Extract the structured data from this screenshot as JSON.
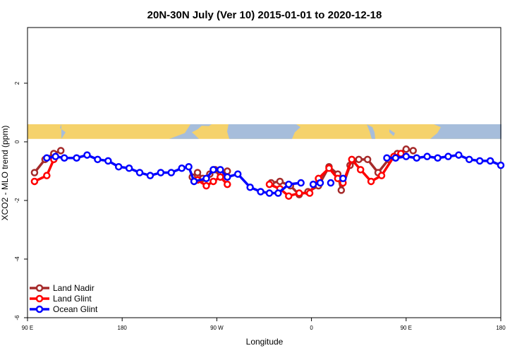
{
  "chart_data": {
    "type": "line",
    "title": "20N-30N July (Ver 10)   2015-01-01 to 2020-12-18",
    "xlabel": "Longitude",
    "ylabel": "XCO2 - MLO trend (ppm)",
    "xlim": [
      -90,
      180
    ],
    "ylim": [
      -6,
      3.9
    ],
    "x_ticks": [
      {
        "value": -90,
        "label": "90 E"
      },
      {
        "value": -36,
        "label": "180"
      },
      {
        "value": 18,
        "label": "90 W"
      },
      {
        "value": 72,
        "label": "0"
      },
      {
        "value": 126,
        "label": "90 E"
      },
      {
        "value": 180,
        "label": "180"
      }
    ],
    "y_ticks": [
      {
        "value": 2,
        "label": "2"
      },
      {
        "value": 0,
        "label": "0"
      },
      {
        "value": -2,
        "label": "-2"
      },
      {
        "value": -4,
        "label": "-4"
      },
      {
        "value": -6,
        "label": "-6"
      }
    ],
    "grid": false,
    "legend_position": "bottom-left",
    "map_strip": {
      "y_range": [
        0.1,
        0.6
      ],
      "land_color": "#f5d26b",
      "ocean_color": "#a6bddb"
    },
    "series": [
      {
        "name": "Land Nadir",
        "color": "#a52a2a",
        "segments": [
          {
            "x": [
              -86,
              -80,
              -75,
              -71
            ],
            "y": [
              -1.05,
              -0.6,
              -0.4,
              -0.3
            ]
          },
          {
            "x": [
              4,
              7,
              10,
              14,
              17,
              20,
              24
            ],
            "y": [
              -1.2,
              -1.05,
              -1.25,
              -1.1,
              -0.95,
              -1.2,
              -1.0
            ]
          },
          {
            "x": [
              49,
              54,
              60,
              65,
              70,
              76,
              82,
              87,
              89,
              94,
              99,
              104,
              110,
              116,
              121,
              126,
              130
            ],
            "y": [
              -1.4,
              -1.35,
              -1.5,
              -1.8,
              -1.7,
              -1.5,
              -0.85,
              -1.1,
              -1.65,
              -0.8,
              -0.6,
              -0.6,
              -1.05,
              -0.6,
              -0.4,
              -0.25,
              -0.3
            ]
          }
        ]
      },
      {
        "name": "Land Glint",
        "color": "#ff0000",
        "segments": [
          {
            "x": [
              -86,
              -79,
              -75
            ],
            "y": [
              -1.35,
              -1.15,
              -0.6
            ]
          },
          {
            "x": [
              7,
              12,
              16,
              20,
              24
            ],
            "y": [
              -1.3,
              -1.5,
              -1.35,
              -1.2,
              -1.45
            ]
          },
          {
            "x": [
              48,
              54,
              59,
              65,
              71,
              76,
              82,
              87,
              90,
              95,
              100,
              106,
              112,
              119,
              123
            ],
            "y": [
              -1.45,
              -1.6,
              -1.85,
              -1.75,
              -1.75,
              -1.25,
              -0.9,
              -1.25,
              -1.4,
              -0.6,
              -0.95,
              -1.35,
              -1.15,
              -0.5,
              -0.4
            ]
          }
        ]
      },
      {
        "name": "Ocean Glint",
        "color": "#0000ff",
        "segments": [
          {
            "x": [
              -79,
              -74,
              -69,
              -62,
              -56,
              -50,
              -44,
              -38,
              -32,
              -26,
              -20,
              -14,
              -8,
              -2,
              2,
              5,
              12,
              16,
              20,
              24,
              30,
              37,
              43,
              48,
              53,
              59,
              66
            ],
            "y": [
              -0.55,
              -0.5,
              -0.55,
              -0.55,
              -0.45,
              -0.6,
              -0.65,
              -0.85,
              -0.9,
              -1.05,
              -1.15,
              -1.05,
              -1.05,
              -0.9,
              -0.85,
              -1.35,
              -1.25,
              -0.95,
              -0.95,
              -1.2,
              -1.1,
              -1.55,
              -1.7,
              -1.75,
              -1.75,
              -1.45,
              -1.4
            ]
          },
          {
            "x": [
              73,
              77
            ],
            "y": [
              -1.45,
              -1.4
            ]
          },
          {
            "x": [
              83
            ],
            "y": [
              -1.4
            ]
          },
          {
            "x": [
              90
            ],
            "y": [
              -1.25
            ]
          },
          {
            "x": [
              115,
              120,
              126,
              132,
              138,
              144,
              150,
              156,
              162,
              168,
              174,
              180
            ],
            "y": [
              -0.55,
              -0.55,
              -0.5,
              -0.55,
              -0.5,
              -0.55,
              -0.5,
              -0.45,
              -0.6,
              -0.65,
              -0.65,
              -0.8
            ]
          }
        ]
      }
    ]
  }
}
